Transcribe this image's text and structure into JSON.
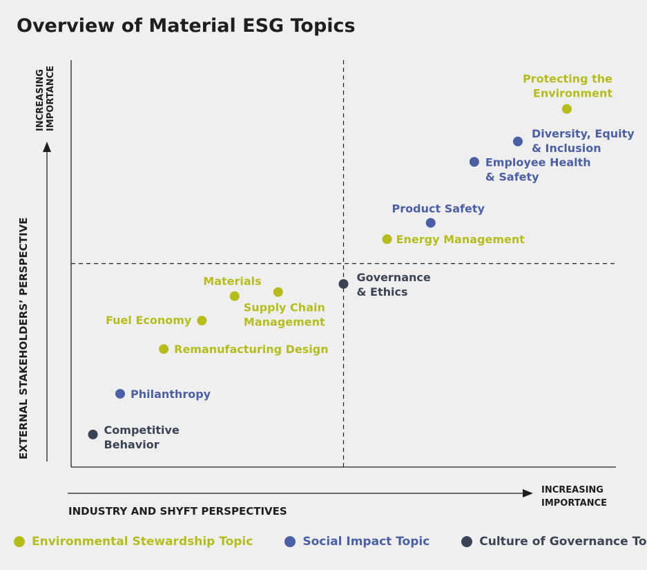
{
  "title": "Overview of Material ESG Topics",
  "colors": {
    "environmental": "#b5bd1c",
    "social": "#4a5fa6",
    "governance": "#3a4455",
    "axis": "#1e1e1e",
    "background": "#efefef"
  },
  "legend": [
    {
      "key": "environmental",
      "label": "Environmental Stewardship Topic"
    },
    {
      "key": "social",
      "label": "Social Impact Topic"
    },
    {
      "key": "governance",
      "label": "Culture of Governance Topic"
    }
  ],
  "chart_data": {
    "type": "scatter",
    "title": "Overview of Material ESG Topics",
    "xlabel": "INDUSTRY AND SHYFT PERSPECTIVES",
    "ylabel": "EXTERNAL STAKEHOLDERS’ PERSPECTIVE",
    "x_arrow_label": [
      "INCREASING",
      "IMPORTANCE"
    ],
    "y_arrow_label": [
      "INCREASING",
      "IMPORTANCE"
    ],
    "xlim": [
      0,
      10
    ],
    "ylim": [
      0,
      10
    ],
    "divider": {
      "x": 5,
      "y": 5
    },
    "grid": false,
    "legend_position": "bottom",
    "points": [
      {
        "lines": [
          "Protecting the",
          "Environment"
        ],
        "category": "environmental",
        "x": 9.1,
        "y": 8.8
      },
      {
        "lines": [
          "Diversity, Equity",
          "& Inclusion"
        ],
        "category": "social",
        "x": 8.2,
        "y": 8.0
      },
      {
        "lines": [
          "Employee Health",
          "& Safety"
        ],
        "category": "social",
        "x": 7.4,
        "y": 7.5
      },
      {
        "lines": [
          "Product Safety"
        ],
        "category": "social",
        "x": 6.6,
        "y": 6.0
      },
      {
        "lines": [
          "Energy Management"
        ],
        "category": "environmental",
        "x": 5.8,
        "y": 5.6
      },
      {
        "lines": [
          "Governance",
          "& Ethics"
        ],
        "category": "governance",
        "x": 5.0,
        "y": 4.5
      },
      {
        "lines": [
          "Materials"
        ],
        "category": "environmental",
        "x": 3.0,
        "y": 4.2
      },
      {
        "lines": [
          "Supply Chain",
          "Management"
        ],
        "category": "environmental",
        "x": 3.8,
        "y": 4.3
      },
      {
        "lines": [
          "Fuel Economy"
        ],
        "category": "environmental",
        "x": 2.4,
        "y": 3.6
      },
      {
        "lines": [
          "Remanufacturing Design"
        ],
        "category": "environmental",
        "x": 1.7,
        "y": 2.9
      },
      {
        "lines": [
          "Philanthropy"
        ],
        "category": "social",
        "x": 0.9,
        "y": 1.8
      },
      {
        "lines": [
          "Competitive",
          "Behavior"
        ],
        "category": "governance",
        "x": 0.4,
        "y": 0.8
      }
    ]
  }
}
